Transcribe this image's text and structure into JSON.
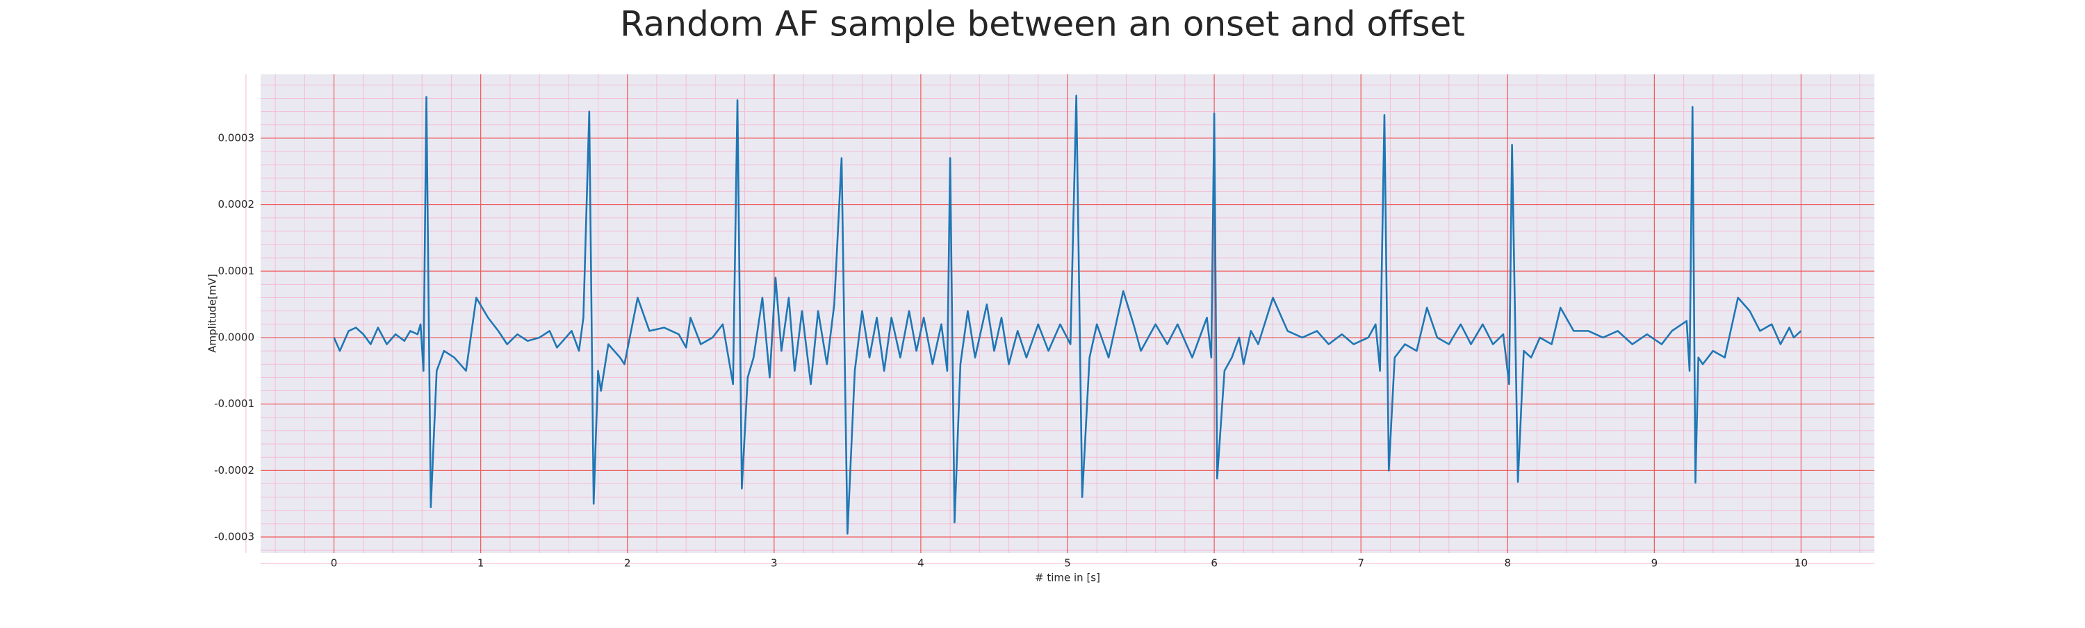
{
  "chart_data": {
    "type": "line",
    "title": "Random AF sample between an onset and offset",
    "xlabel": "# time in [s]",
    "ylabel": "Amplitude[mV]",
    "xlim": [
      -0.5,
      10.5
    ],
    "ylim": [
      -0.000324,
      0.000396
    ],
    "xticks": [
      0,
      1,
      2,
      3,
      4,
      5,
      6,
      7,
      8,
      9,
      10
    ],
    "yticks": [
      -0.0003,
      -0.0002,
      -0.0001,
      {
        "value": 0,
        "label": "0.0000"
      },
      0.0001,
      0.0002,
      0.0003
    ],
    "grid": true,
    "minor_grid": true,
    "color": "#1f77b4",
    "x": [
      0,
      0.04,
      0.1,
      0.15,
      0.2,
      0.25,
      0.3,
      0.36,
      0.42,
      0.48,
      0.52,
      0.57,
      0.59,
      0.61,
      0.63,
      0.66,
      0.7,
      0.75,
      0.82,
      0.9,
      0.97,
      1.05,
      1.12,
      1.18,
      1.25,
      1.32,
      1.4,
      1.47,
      1.52,
      1.58,
      1.62,
      1.67,
      1.7,
      1.74,
      1.77,
      1.8,
      1.82,
      1.87,
      1.95,
      1.98,
      2.07,
      2.15,
      2.25,
      2.35,
      2.4,
      2.43,
      2.5,
      2.58,
      2.65,
      2.72,
      2.75,
      2.78,
      2.82,
      2.86,
      2.92,
      2.97,
      3.01,
      3.05,
      3.1,
      3.14,
      3.19,
      3.25,
      3.3,
      3.36,
      3.41,
      3.46,
      3.5,
      3.55,
      3.6,
      3.65,
      3.7,
      3.75,
      3.8,
      3.86,
      3.92,
      3.97,
      4.02,
      4.08,
      4.14,
      4.18,
      4.2,
      4.23,
      4.27,
      4.32,
      4.37,
      4.45,
      4.5,
      4.55,
      4.6,
      4.66,
      4.72,
      4.8,
      4.87,
      4.95,
      5.02,
      5.06,
      5.1,
      5.15,
      5.2,
      5.28,
      5.38,
      5.45,
      5.5,
      5.6,
      5.68,
      5.75,
      5.85,
      5.95,
      5.98,
      6.0,
      6.02,
      6.07,
      6.12,
      6.17,
      6.2,
      6.25,
      6.3,
      6.4,
      6.5,
      6.6,
      6.7,
      6.78,
      6.87,
      6.95,
      7.05,
      7.1,
      7.13,
      7.16,
      7.19,
      7.23,
      7.3,
      7.38,
      7.45,
      7.52,
      7.6,
      7.68,
      7.75,
      7.83,
      7.9,
      7.97,
      8.01,
      8.03,
      8.07,
      8.11,
      8.16,
      8.22,
      8.3,
      8.36,
      8.45,
      8.55,
      8.65,
      8.75,
      8.85,
      8.95,
      9.05,
      9.12,
      9.22,
      9.24,
      9.26,
      9.28,
      9.3,
      9.33,
      9.4,
      9.48,
      9.57,
      9.65,
      9.72,
      9.8,
      9.86,
      9.92,
      9.95,
      10.0
    ],
    "values": [
      0.0,
      -2e-05,
      1e-05,
      1.5e-05,
      5e-06,
      -1e-05,
      1.5e-05,
      -1e-05,
      5e-06,
      -5e-06,
      1e-05,
      5e-06,
      2e-05,
      -5e-05,
      0.000362,
      -0.000255,
      -5e-05,
      -2e-05,
      -3e-05,
      -5e-05,
      6e-05,
      3e-05,
      1e-05,
      -1e-05,
      5e-06,
      -5e-06,
      0.0,
      1e-05,
      -1.5e-05,
      0.0,
      1e-05,
      -2e-05,
      3e-05,
      0.00034,
      -0.00025,
      -5e-05,
      -8e-05,
      -1e-05,
      -3e-05,
      -4e-05,
      6e-05,
      1e-05,
      1.5e-05,
      5e-06,
      -1.5e-05,
      3e-05,
      -1e-05,
      0.0,
      2e-05,
      -7e-05,
      0.000357,
      -0.000227,
      -6e-05,
      -3e-05,
      6e-05,
      -6e-05,
      9e-05,
      -2e-05,
      6e-05,
      -5e-05,
      4e-05,
      -7e-05,
      4e-05,
      -4e-05,
      5e-05,
      0.00027,
      -0.000295,
      -5e-05,
      4e-05,
      -3e-05,
      3e-05,
      -5e-05,
      3e-05,
      -3e-05,
      4e-05,
      -2e-05,
      3e-05,
      -4e-05,
      2e-05,
      -5e-05,
      0.00027,
      -0.000278,
      -4e-05,
      4e-05,
      -3e-05,
      5e-05,
      -2e-05,
      3e-05,
      -4e-05,
      1e-05,
      -3e-05,
      2e-05,
      -2e-05,
      2e-05,
      -1e-05,
      0.000364,
      -0.00024,
      -3e-05,
      2e-05,
      -3e-05,
      7e-05,
      2e-05,
      -2e-05,
      2e-05,
      -1e-05,
      2e-05,
      -3e-05,
      3e-05,
      -3e-05,
      0.000337,
      -0.000212,
      -5e-05,
      -3e-05,
      0.0,
      -4e-05,
      1e-05,
      -1e-05,
      6e-05,
      1e-05,
      0.0,
      1e-05,
      -1e-05,
      5e-06,
      -1e-05,
      0.0,
      2e-05,
      -5e-05,
      0.000335,
      -0.0002,
      -3e-05,
      -1e-05,
      -2e-05,
      4.5e-05,
      0.0,
      -1e-05,
      2e-05,
      -1e-05,
      2e-05,
      -1e-05,
      5e-06,
      -7e-05,
      0.00029,
      -0.000217,
      -2e-05,
      -3e-05,
      0.0,
      -1e-05,
      4.5e-05,
      1e-05,
      1e-05,
      0.0,
      1e-05,
      -1e-05,
      5e-06,
      -1e-05,
      1e-05,
      2.5e-05,
      -5e-05,
      0.000347,
      -0.000218,
      -3e-05,
      -4e-05,
      -2e-05,
      -3e-05,
      6e-05,
      4e-05,
      1e-05,
      2e-05,
      -1e-05,
      1.5e-05,
      0.0,
      1e-05
    ]
  }
}
